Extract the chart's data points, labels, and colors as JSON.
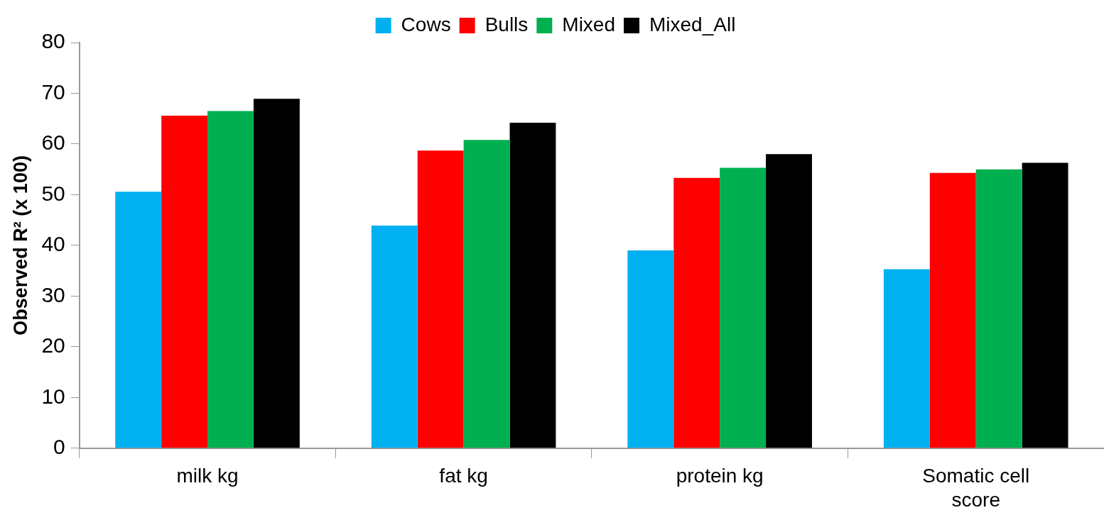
{
  "chart_data": {
    "type": "bar",
    "ylabel": "Observed R² (x 100)",
    "categories": [
      "milk kg",
      "fat kg",
      "protein kg",
      "Somatic cell score"
    ],
    "series": [
      {
        "name": "Cows",
        "color": "#00b0f0",
        "values": [
          50.6,
          43.9,
          39.0,
          35.3
        ]
      },
      {
        "name": "Bulls",
        "color": "#ff0000",
        "values": [
          65.6,
          58.7,
          53.3,
          54.3
        ]
      },
      {
        "name": "Mixed",
        "color": "#00b050",
        "values": [
          66.5,
          60.8,
          55.3,
          55.0
        ]
      },
      {
        "name": "Mixed_All",
        "color": "#000000",
        "values": [
          68.9,
          64.2,
          58.0,
          56.3
        ]
      }
    ],
    "ylim": [
      0,
      80
    ],
    "yticks": [
      0,
      10,
      20,
      30,
      40,
      50,
      60,
      70,
      80
    ],
    "legend": "top"
  }
}
